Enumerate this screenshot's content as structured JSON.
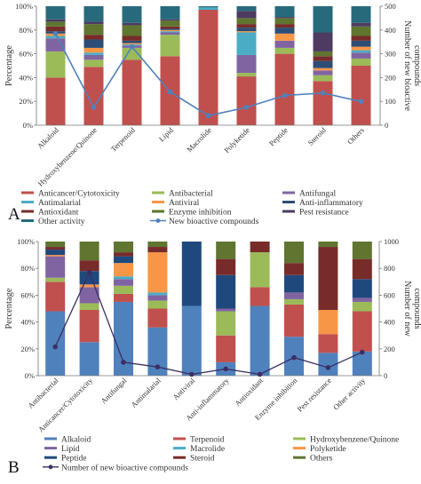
{
  "panels": [
    {
      "label": "A",
      "chart_data": {
        "type": "bar",
        "stacked": true,
        "secondary_type": "line",
        "categories": [
          "Alkaloid",
          "Hydroxybenzene/Quinone",
          "Terpenoid",
          "Lipid",
          "Macrolide",
          "Polyketide",
          "Peptide",
          "Steroid",
          "Others"
        ],
        "ylabel": "Percentage",
        "y2label": "Number of new bioactive compounds",
        "ylim": [
          0,
          100
        ],
        "y2lim": [
          0,
          500
        ],
        "yticks": [
          "0%",
          "20%",
          "40%",
          "60%",
          "80%",
          "100%"
        ],
        "y2ticks": [
          "0",
          "100",
          "200",
          "300",
          "400",
          "500"
        ],
        "series": [
          {
            "name": "Anticancer/Cytotoxicity",
            "color": "#c0504d",
            "values": [
              40,
              49,
              55,
              58,
              97,
              41,
              60,
              37,
              50
            ]
          },
          {
            "name": "Antibacterial",
            "color": "#9bbb59",
            "values": [
              22,
              6,
              10,
              18,
              0,
              3,
              5,
              5,
              6
            ]
          },
          {
            "name": "Antifungal",
            "color": "#8064a2",
            "values": [
              11,
              4,
              2,
              2,
              0,
              15,
              6,
              4,
              5
            ]
          },
          {
            "name": "Antimalarial",
            "color": "#4bacc6",
            "values": [
              2,
              2,
              1,
              1,
              2,
              19,
              0,
              0,
              2
            ]
          },
          {
            "name": "Antiviral",
            "color": "#f79646",
            "values": [
              2,
              4,
              1,
              1,
              0,
              1,
              6,
              2,
              3
            ]
          },
          {
            "name": "Anti-inflammatory",
            "color": "#2c4d75",
            "values": [
              2,
              7,
              2,
              1,
              0,
              3,
              5,
              6,
              5
            ]
          },
          {
            "name": "Antioxidant",
            "color": "#772c2a",
            "values": [
              4,
              4,
              4,
              2,
              0,
              3,
              3,
              4,
              4
            ]
          },
          {
            "name": "Enzyme inhibition",
            "color": "#5f7530",
            "values": [
              4,
              9,
              9,
              5,
              0,
              5,
              5,
              4,
              8
            ]
          },
          {
            "name": "Pest resistance",
            "color": "#4d3b62",
            "values": [
              2,
              2,
              2,
              1,
              0,
              6,
              1,
              16,
              3
            ]
          },
          {
            "name": "Other activity",
            "color": "#276a7c",
            "values": [
              11,
              13,
              14,
              11,
              1,
              4,
              9,
              22,
              14
            ]
          }
        ],
        "line": {
          "name": "New bioactive compounds",
          "color": "#4f81bd",
          "values": [
            385,
            75,
            330,
            140,
            40,
            75,
            125,
            135,
            100
          ]
        }
      }
    },
    {
      "label": "B",
      "chart_data": {
        "type": "bar",
        "stacked": true,
        "secondary_type": "line",
        "categories": [
          "Antibacterial",
          "Anticancer/Cytotoxicity",
          "Antifungal",
          "Antimalarial",
          "Antiviral",
          "Anti-inflammatory",
          "Antioxidant",
          "Enzyme inhibition",
          "Pest resistance",
          "Other activity"
        ],
        "ylabel": "Percentage",
        "y2label": "Number of new compounds",
        "ylim": [
          0,
          100
        ],
        "y2lim": [
          0,
          1000
        ],
        "yticks": [
          "0%",
          "20%",
          "40%",
          "60%",
          "80%",
          "100%"
        ],
        "y2ticks": [
          "0",
          "200",
          "400",
          "600",
          "800",
          "1000"
        ],
        "series": [
          {
            "name": "Alkaloid",
            "color": "#4f81bd",
            "values": [
              48,
              25,
              55,
              36,
              52,
              10,
              52,
              29,
              17,
              18
            ]
          },
          {
            "name": "Terpenoid",
            "color": "#c0504d",
            "values": [
              22,
              24,
              6,
              14,
              0,
              20,
              14,
              24,
              14,
              30
            ]
          },
          {
            "name": "Hydroxybenzene/Quinone",
            "color": "#9bbb59",
            "values": [
              3,
              5,
              6,
              6,
              0,
              18,
              26,
              4,
              0,
              7
            ]
          },
          {
            "name": "Lipid",
            "color": "#8064a2",
            "values": [
              16,
              12,
              5,
              4,
              0,
              2,
              0,
              5,
              0,
              3
            ]
          },
          {
            "name": "Macrolide",
            "color": "#4bacc6",
            "values": [
              0,
              0,
              2,
              2,
              0,
              0,
              0,
              0,
              0,
              0
            ]
          },
          {
            "name": "Polyketide",
            "color": "#f79646",
            "values": [
              1,
              2,
              10,
              30,
              0,
              0,
              0,
              0,
              18,
              0
            ]
          },
          {
            "name": "Peptide",
            "color": "#1f497d",
            "values": [
              4,
              10,
              5,
              0,
              48,
              25,
              0,
              13,
              0,
              14
            ]
          },
          {
            "name": "Steroid",
            "color": "#772c2a",
            "values": [
              2,
              8,
              3,
              4,
              0,
              12,
              8,
              9,
              47,
              15
            ]
          },
          {
            "name": "Others",
            "color": "#5f7530",
            "values": [
              4,
              14,
              8,
              4,
              0,
              13,
              0,
              16,
              4,
              13
            ]
          }
        ],
        "line": {
          "name": "Number of new bioactive compounds",
          "color": "#3b2f63",
          "values": [
            215,
            770,
            100,
            65,
            10,
            50,
            10,
            135,
            60,
            175
          ]
        }
      }
    }
  ]
}
